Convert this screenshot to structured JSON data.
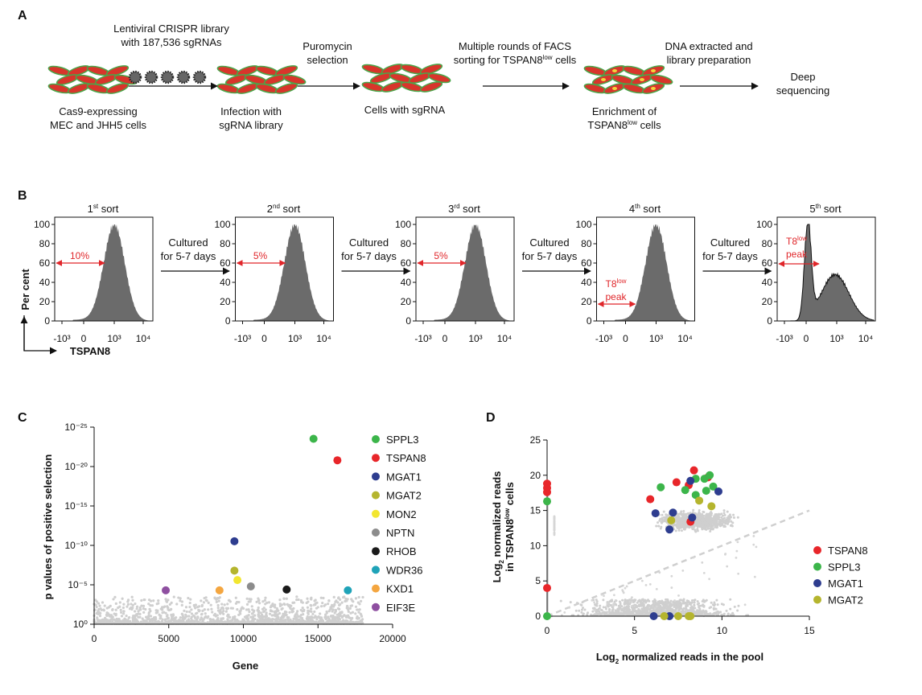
{
  "panel_a": {
    "label": "A",
    "cells_start": [
      "Cas9-expressing",
      "MEC and JHH5 cells"
    ],
    "library": [
      "Lentiviral CRISPR library",
      "with 187,536 sgRNAs"
    ],
    "infection": [
      "Infection with",
      "sgRNA library"
    ],
    "puromycin": [
      "Puromycin",
      "selection"
    ],
    "cells_sgrna": "Cells with sgRNA",
    "facs": [
      "Multiple rounds of FACS",
      {
        "text": "sorting for TSPAN8",
        "sup": "low",
        "after": " cells"
      }
    ],
    "enrichment": [
      "Enrichment of",
      {
        "text": "TSPAN8",
        "sup": "low",
        "after": " cells"
      }
    ],
    "dna": [
      "DNA extracted and",
      "library preparation"
    ],
    "sequencing": [
      "Deep",
      "sequencing"
    ]
  },
  "panel_b": {
    "label": "B",
    "sorts": [
      {
        "text": "1",
        "sup": "st",
        "after": " sort"
      },
      {
        "text": "2",
        "sup": "nd",
        "after": " sort"
      },
      {
        "text": "3",
        "sup": "rd",
        "after": " sort"
      },
      {
        "text": "4",
        "sup": "th",
        "after": " sort"
      },
      {
        "text": "5",
        "sup": "th",
        "after": " sort"
      }
    ],
    "yticks": [
      0,
      20,
      40,
      60,
      80,
      100
    ],
    "xtick_labels": [
      "-10³",
      "0",
      "10³",
      "10⁴"
    ],
    "culture": [
      "Cultured",
      "for 5-7 days"
    ],
    "gates": [
      "10%",
      "5%",
      "5%",
      [
        {
          "text": "T8",
          "sup": "low"
        },
        "peak"
      ],
      [
        {
          "text": "T8",
          "sup": "low"
        },
        "peak"
      ]
    ],
    "ylabel": "Per cent",
    "xlabel": "TSPAN8"
  },
  "chart_data": [
    {
      "type": "scatter",
      "panel": "C",
      "ylabel": "p values of positive selection",
      "xlabel": "Gene",
      "xlim": [
        0,
        20000
      ],
      "xticks": [
        0,
        5000,
        10000,
        15000,
        20000
      ],
      "ylim": [
        1,
        1e-25
      ],
      "log_y": true,
      "yticks": [
        {
          "value": 1,
          "label": "10⁰"
        },
        {
          "value": 1e-05,
          "label": "10⁻⁵"
        },
        {
          "value": 1e-10,
          "label": "10⁻¹⁰"
        },
        {
          "value": 1e-15,
          "label": "10⁻¹⁵"
        },
        {
          "value": 1e-20,
          "label": "10⁻²⁰"
        },
        {
          "value": 1e-25,
          "label": "10⁻²⁵"
        }
      ],
      "series": [
        {
          "name": "SPPL3",
          "color": "#3cb54a",
          "x": [
            14700
          ],
          "values": [
            3e-24
          ]
        },
        {
          "name": "TSPAN8",
          "color": "#e8262a",
          "x": [
            16300
          ],
          "values": [
            1.6e-21
          ]
        },
        {
          "name": "MGAT1",
          "color": "#2e3d8f",
          "x": [
            9400
          ],
          "values": [
            3e-11
          ]
        },
        {
          "name": "MGAT2",
          "color": "#b5b52e",
          "x": [
            9400
          ],
          "values": [
            1.6e-07
          ]
        },
        {
          "name": "MON2",
          "color": "#f2e630",
          "x": [
            9600
          ],
          "values": [
            2.5e-06
          ]
        },
        {
          "name": "NPTN",
          "color": "#8c8c8c",
          "x": [
            10500
          ],
          "values": [
            1.6e-05
          ]
        },
        {
          "name": "RHOB",
          "color": "#1a1a1a",
          "x": [
            12900
          ],
          "values": [
            4e-05
          ]
        },
        {
          "name": "WDR36",
          "color": "#1fa3b8",
          "x": [
            17000
          ],
          "values": [
            5e-05
          ]
        },
        {
          "name": "KXD1",
          "color": "#f4a640",
          "x": [
            8400
          ],
          "values": [
            5e-05
          ]
        },
        {
          "name": "EIF3E",
          "color": "#8e4fa0",
          "x": [
            4800
          ],
          "values": [
            5e-05
          ]
        }
      ]
    },
    {
      "type": "scatter",
      "panel": "D",
      "ylabel": [
        {
          "text": "Log",
          "sub": "2",
          "after": " normalized reads"
        },
        {
          "text": "in TSPAN8",
          "sup": "low",
          "after": " cells"
        }
      ],
      "xlabel": {
        "text": "Log",
        "sub": "2",
        "after": " normalized reads in the pool"
      },
      "xlim": [
        0,
        15
      ],
      "xticks": [
        0,
        5,
        10,
        15
      ],
      "ylim": [
        0,
        25
      ],
      "yticks": [
        0,
        5,
        10,
        15,
        20,
        25
      ],
      "series": [
        {
          "name": "TSPAN8",
          "color": "#e8262a",
          "x": [
            0,
            0,
            0,
            0,
            5.9,
            7.4,
            8.4,
            9.2,
            8.1,
            8.2
          ],
          "values": [
            18.8,
            18.2,
            17.6,
            4.0,
            16.6,
            19.0,
            20.7,
            19.7,
            18.6,
            13.4
          ]
        },
        {
          "name": "SPPL3",
          "color": "#3cb54a",
          "x": [
            0,
            0,
            6.5,
            7.9,
            8.5,
            9.0,
            9.3,
            8.5,
            9.1,
            9.5
          ],
          "values": [
            16.3,
            0,
            18.3,
            17.9,
            19.5,
            19.5,
            20.0,
            17.2,
            17.8,
            18.4
          ]
        },
        {
          "name": "MGAT1",
          "color": "#2e3d8f",
          "x": [
            6.2,
            7.2,
            8.2,
            7.0,
            8.3,
            9.8,
            6.1,
            7.0
          ],
          "values": [
            14.6,
            14.7,
            19.2,
            12.3,
            14.0,
            17.7,
            0,
            0
          ]
        },
        {
          "name": "MGAT2",
          "color": "#b5b52e",
          "x": [
            7.1,
            8.7,
            9.4,
            6.7,
            7.5,
            8.1,
            8.2
          ],
          "values": [
            13.6,
            16.4,
            15.6,
            0,
            0,
            0,
            0
          ]
        }
      ]
    }
  ]
}
